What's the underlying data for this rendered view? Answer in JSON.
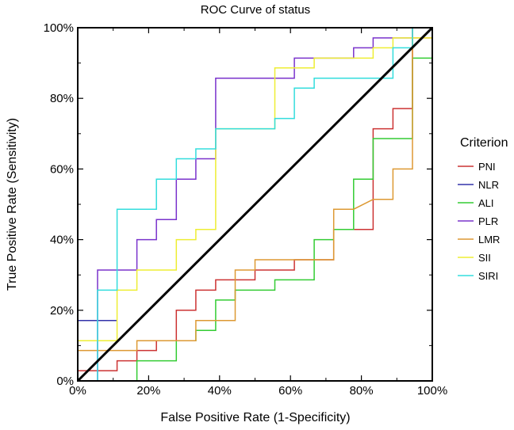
{
  "chart_data": {
    "type": "line",
    "title": "ROC Curve of status",
    "xlabel": "False Positive Rate (1-Specificity)",
    "ylabel": "True Positive Rate (Sensitivity)",
    "xlim": [
      0,
      100
    ],
    "ylim": [
      0,
      100
    ],
    "x_ticks": [
      0,
      20,
      40,
      60,
      80,
      100
    ],
    "y_ticks": [
      0,
      20,
      40,
      60,
      80,
      100
    ],
    "x_tick_labels": [
      "0%",
      "20%",
      "40%",
      "60%",
      "80%",
      "100%"
    ],
    "y_tick_labels": [
      "0%",
      "20%",
      "40%",
      "60%",
      "80%",
      "100%"
    ],
    "grid": false,
    "legend_title": "Criterion",
    "legend_position": "right",
    "diagonal": {
      "name": "reference",
      "color": "#000000",
      "points": [
        [
          0,
          0
        ],
        [
          100,
          100
        ]
      ]
    },
    "series": [
      {
        "name": "PNI",
        "color": "#cc3333",
        "points": [
          [
            0,
            0
          ],
          [
            0,
            2.9
          ],
          [
            5.6,
            2.9
          ],
          [
            11.1,
            2.9
          ],
          [
            11.1,
            5.7
          ],
          [
            16.7,
            5.7
          ],
          [
            16.7,
            8.6
          ],
          [
            22.2,
            8.6
          ],
          [
            22.2,
            11.4
          ],
          [
            27.8,
            11.4
          ],
          [
            27.8,
            20
          ],
          [
            33.3,
            20
          ],
          [
            33.3,
            25.7
          ],
          [
            38.9,
            25.7
          ],
          [
            38.9,
            28.6
          ],
          [
            44.4,
            28.6
          ],
          [
            50,
            28.6
          ],
          [
            50,
            31.4
          ],
          [
            61.1,
            31.4
          ],
          [
            61.1,
            34.3
          ],
          [
            72.2,
            34.3
          ],
          [
            72.2,
            42.9
          ],
          [
            83.3,
            42.9
          ],
          [
            83.3,
            71.4
          ],
          [
            88.9,
            71.4
          ],
          [
            88.9,
            77.1
          ],
          [
            94.4,
            77.1
          ],
          [
            94.4,
            97.1
          ],
          [
            100,
            97.1
          ],
          [
            100,
            80
          ]
        ]
      },
      {
        "name": "NLR",
        "color": "#3333aa",
        "points": [
          [
            0,
            0
          ],
          [
            0,
            17.1
          ],
          [
            11.1,
            17.1
          ]
        ]
      },
      {
        "name": "ALI",
        "color": "#33cc33",
        "points": [
          [
            16.7,
            0
          ],
          [
            16.7,
            5.7
          ],
          [
            27.8,
            5.7
          ],
          [
            27.8,
            11.4
          ],
          [
            33.3,
            11.4
          ],
          [
            33.3,
            14.3
          ],
          [
            38.9,
            14.3
          ],
          [
            38.9,
            22.9
          ],
          [
            44.4,
            22.9
          ],
          [
            44.4,
            25.7
          ],
          [
            55.6,
            25.7
          ],
          [
            55.6,
            28.6
          ],
          [
            66.7,
            28.6
          ],
          [
            66.7,
            40
          ],
          [
            72.2,
            40
          ],
          [
            72.2,
            42.9
          ],
          [
            77.8,
            42.9
          ],
          [
            77.8,
            57.1
          ],
          [
            83.3,
            57.1
          ],
          [
            83.3,
            68.6
          ],
          [
            94.4,
            68.6
          ],
          [
            94.4,
            91.4
          ],
          [
            100,
            91.4
          ],
          [
            100,
            94.3
          ]
        ]
      },
      {
        "name": "PLR",
        "color": "#7a33cc",
        "points": [
          [
            0,
            0
          ],
          [
            5.6,
            0
          ],
          [
            5.6,
            31.4
          ],
          [
            16.7,
            31.4
          ],
          [
            16.7,
            40
          ],
          [
            22.2,
            40
          ],
          [
            22.2,
            45.7
          ],
          [
            27.8,
            45.7
          ],
          [
            27.8,
            57.1
          ],
          [
            33.3,
            57.1
          ],
          [
            33.3,
            62.9
          ],
          [
            38.9,
            62.9
          ],
          [
            38.9,
            85.7
          ],
          [
            55.6,
            85.7
          ],
          [
            61.1,
            85.7
          ],
          [
            61.1,
            91.4
          ],
          [
            66.7,
            91.4
          ],
          [
            77.8,
            91.4
          ],
          [
            77.8,
            94.3
          ],
          [
            83.3,
            94.3
          ],
          [
            83.3,
            97.1
          ],
          [
            94.4,
            97.1
          ],
          [
            94.4,
            100
          ],
          [
            100,
            100
          ]
        ]
      },
      {
        "name": "LMR",
        "color": "#dd9933",
        "points": [
          [
            0,
            0
          ],
          [
            0,
            8.6
          ],
          [
            16.7,
            8.6
          ],
          [
            16.7,
            11.4
          ],
          [
            33.3,
            11.4
          ],
          [
            33.3,
            17.1
          ],
          [
            44.4,
            17.1
          ],
          [
            44.4,
            31.4
          ],
          [
            50,
            31.4
          ],
          [
            50,
            34.3
          ],
          [
            72.2,
            34.3
          ],
          [
            72.2,
            48.6
          ],
          [
            77.8,
            48.6
          ],
          [
            83.3,
            51.4
          ],
          [
            88.9,
            51.4
          ],
          [
            88.9,
            60
          ],
          [
            94.4,
            60
          ],
          [
            94.4,
            100
          ],
          [
            100,
            100
          ]
        ]
      },
      {
        "name": "SII",
        "color": "#eeee33",
        "points": [
          [
            0,
            0
          ],
          [
            0,
            11.4
          ],
          [
            11.1,
            11.4
          ],
          [
            11.1,
            25.7
          ],
          [
            16.7,
            25.7
          ],
          [
            16.7,
            31.4
          ],
          [
            27.8,
            31.4
          ],
          [
            27.8,
            40
          ],
          [
            33.3,
            40
          ],
          [
            33.3,
            42.9
          ],
          [
            38.9,
            42.9
          ],
          [
            38.9,
            71.4
          ],
          [
            50,
            71.4
          ],
          [
            55.6,
            71.4
          ],
          [
            55.6,
            88.6
          ],
          [
            66.7,
            88.6
          ],
          [
            66.7,
            91.4
          ],
          [
            83.3,
            91.4
          ],
          [
            83.3,
            94.3
          ],
          [
            88.9,
            94.3
          ],
          [
            88.9,
            97.1
          ],
          [
            100,
            97.1
          ],
          [
            100,
            100
          ]
        ]
      },
      {
        "name": "SIRI",
        "color": "#33dddd",
        "points": [
          [
            0,
            0
          ],
          [
            5.6,
            0
          ],
          [
            5.6,
            25.7
          ],
          [
            11.1,
            25.7
          ],
          [
            11.1,
            48.6
          ],
          [
            22.2,
            48.6
          ],
          [
            22.2,
            57.1
          ],
          [
            27.8,
            57.1
          ],
          [
            27.8,
            62.9
          ],
          [
            33.3,
            62.9
          ],
          [
            33.3,
            65.7
          ],
          [
            38.9,
            65.7
          ],
          [
            38.9,
            71.4
          ],
          [
            55.6,
            71.4
          ],
          [
            55.6,
            74.3
          ],
          [
            61.1,
            74.3
          ],
          [
            61.1,
            82.9
          ],
          [
            66.7,
            82.9
          ],
          [
            66.7,
            85.7
          ],
          [
            88.9,
            85.7
          ],
          [
            88.9,
            94.3
          ],
          [
            94.4,
            94.3
          ],
          [
            94.4,
            100
          ],
          [
            100,
            100
          ]
        ]
      }
    ]
  }
}
